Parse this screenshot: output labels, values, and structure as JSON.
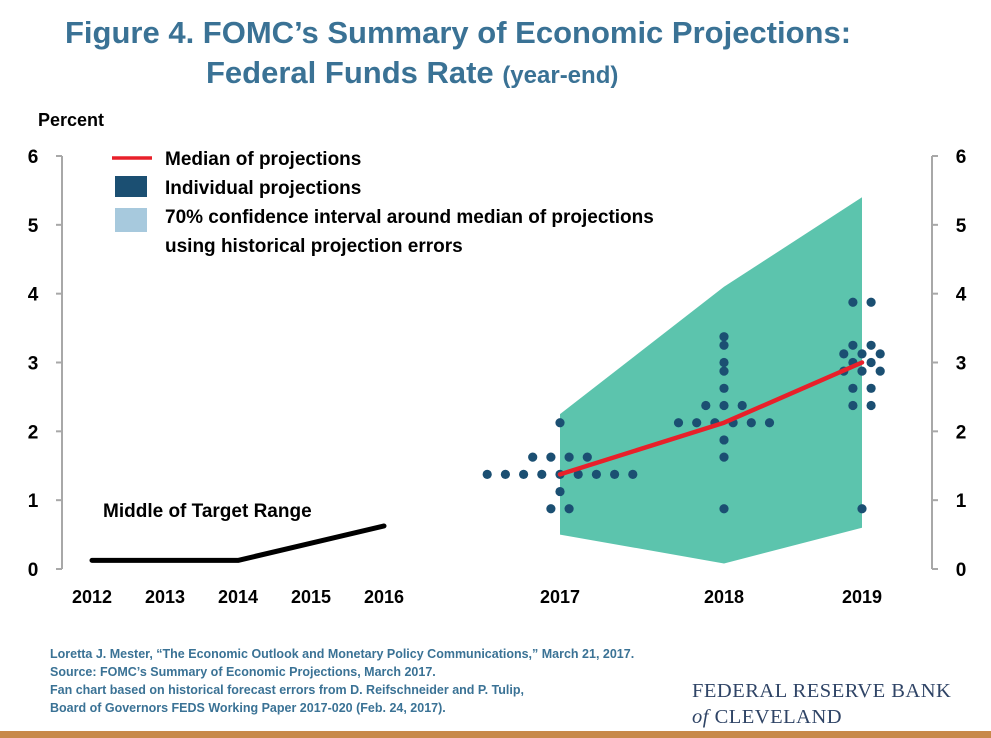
{
  "header": {
    "title_line1": "Figure 4. FOMC’s Summary of Economic Projections:",
    "title_line2": "Federal Funds Rate",
    "title_line2_suffix": "(year-end)"
  },
  "chart_data": {
    "type": "line",
    "ylabel": "Percent",
    "ylim": [
      0,
      6
    ],
    "y_ticks": [
      "0",
      "1",
      "2",
      "3",
      "4",
      "5",
      "6"
    ],
    "x_ticks": [
      "2012",
      "2013",
      "2014",
      "2015",
      "2016",
      "2017",
      "2018",
      "2019"
    ],
    "legend": {
      "median": "Median of projections",
      "individual": "Individual projections",
      "interval_line1": "70% confidence interval around median of projections",
      "interval_line2": "using historical projection errors"
    },
    "annotation": "Middle of Target Range",
    "colors": {
      "median": "#e8202a",
      "individual": "#1b4f72",
      "interval": "#5cc4ad",
      "target": "#000000",
      "title": "#3a7295"
    },
    "series": [
      {
        "name": "Middle of Target Range",
        "x": [
          "2012",
          "2013",
          "2014",
          "2015",
          "2016"
        ],
        "values": [
          0.125,
          0.125,
          0.125,
          0.375,
          0.625
        ]
      },
      {
        "name": "Median of projections",
        "x": [
          "2017",
          "2018",
          "2019"
        ],
        "values": [
          1.375,
          2.125,
          3.0
        ]
      }
    ],
    "interval": {
      "x": [
        "2017",
        "2018",
        "2019"
      ],
      "lower": [
        0.5,
        0.08,
        0.6
      ],
      "upper": [
        2.25,
        4.1,
        5.4
      ]
    },
    "individual_projections": [
      {
        "x": "2017",
        "offset": -4,
        "value": 1.375
      },
      {
        "x": "2017",
        "offset": -3,
        "value": 1.375
      },
      {
        "x": "2017",
        "offset": -2,
        "value": 1.375
      },
      {
        "x": "2017",
        "offset": -1,
        "value": 1.375
      },
      {
        "x": "2017",
        "offset": 0,
        "value": 1.375
      },
      {
        "x": "2017",
        "offset": 1,
        "value": 1.375
      },
      {
        "x": "2017",
        "offset": 2,
        "value": 1.375
      },
      {
        "x": "2017",
        "offset": 3,
        "value": 1.375
      },
      {
        "x": "2017",
        "offset": 4,
        "value": 1.375
      },
      {
        "x": "2017",
        "offset": -1.5,
        "value": 1.625
      },
      {
        "x": "2017",
        "offset": -0.5,
        "value": 1.625
      },
      {
        "x": "2017",
        "offset": 0.5,
        "value": 1.625
      },
      {
        "x": "2017",
        "offset": 1.5,
        "value": 1.625
      },
      {
        "x": "2017",
        "offset": 0,
        "value": 2.125
      },
      {
        "x": "2017",
        "offset": 0,
        "value": 1.125
      },
      {
        "x": "2017",
        "offset": -0.5,
        "value": 0.875
      },
      {
        "x": "2017",
        "offset": 0.5,
        "value": 0.875
      },
      {
        "x": "2018",
        "offset": -2.5,
        "value": 2.125
      },
      {
        "x": "2018",
        "offset": -1.5,
        "value": 2.125
      },
      {
        "x": "2018",
        "offset": -0.5,
        "value": 2.125
      },
      {
        "x": "2018",
        "offset": 0.5,
        "value": 2.125
      },
      {
        "x": "2018",
        "offset": 1.5,
        "value": 2.125
      },
      {
        "x": "2018",
        "offset": 2.5,
        "value": 2.125
      },
      {
        "x": "2018",
        "offset": -1,
        "value": 2.375
      },
      {
        "x": "2018",
        "offset": 0,
        "value": 2.375
      },
      {
        "x": "2018",
        "offset": 1,
        "value": 2.375
      },
      {
        "x": "2018",
        "offset": 0,
        "value": 2.625
      },
      {
        "x": "2018",
        "offset": 0,
        "value": 2.875
      },
      {
        "x": "2018",
        "offset": 0,
        "value": 3.0
      },
      {
        "x": "2018",
        "offset": 0,
        "value": 3.25
      },
      {
        "x": "2018",
        "offset": 0,
        "value": 3.375
      },
      {
        "x": "2018",
        "offset": 0,
        "value": 1.875
      },
      {
        "x": "2018",
        "offset": 0,
        "value": 1.625
      },
      {
        "x": "2018",
        "offset": 0,
        "value": 0.875
      },
      {
        "x": "2019",
        "offset": -1,
        "value": 3.125
      },
      {
        "x": "2019",
        "offset": 0,
        "value": 3.125
      },
      {
        "x": "2019",
        "offset": 1,
        "value": 3.125
      },
      {
        "x": "2019",
        "offset": -0.5,
        "value": 3.25
      },
      {
        "x": "2019",
        "offset": 0.5,
        "value": 3.25
      },
      {
        "x": "2019",
        "offset": -1,
        "value": 2.875
      },
      {
        "x": "2019",
        "offset": 0,
        "value": 2.875
      },
      {
        "x": "2019",
        "offset": 1,
        "value": 2.875
      },
      {
        "x": "2019",
        "offset": -0.5,
        "value": 3.0
      },
      {
        "x": "2019",
        "offset": 0.5,
        "value": 3.0
      },
      {
        "x": "2019",
        "offset": -0.5,
        "value": 3.875
      },
      {
        "x": "2019",
        "offset": 0.5,
        "value": 3.875
      },
      {
        "x": "2019",
        "offset": -0.5,
        "value": 2.625
      },
      {
        "x": "2019",
        "offset": 0.5,
        "value": 2.625
      },
      {
        "x": "2019",
        "offset": -0.5,
        "value": 2.375
      },
      {
        "x": "2019",
        "offset": 0.5,
        "value": 2.375
      },
      {
        "x": "2019",
        "offset": 0,
        "value": 0.875
      }
    ]
  },
  "footer": {
    "line1": "Loretta J. Mester, “The Economic Outlook and Monetary Policy Communications,” March 21, 2017.",
    "line2": "Source: FOMC’s Summary of Economic Projections, March 2017.",
    "line3": "Fan chart based on historical forecast errors from D. Reifschneider and P. Tulip,",
    "line4": "Board of Governors FEDS Working Paper 2017-020 (Feb. 24, 2017)."
  },
  "brand": {
    "line1": "FEDERAL RESERVE BANK",
    "of": "of",
    "line2": "CLEVELAND"
  }
}
